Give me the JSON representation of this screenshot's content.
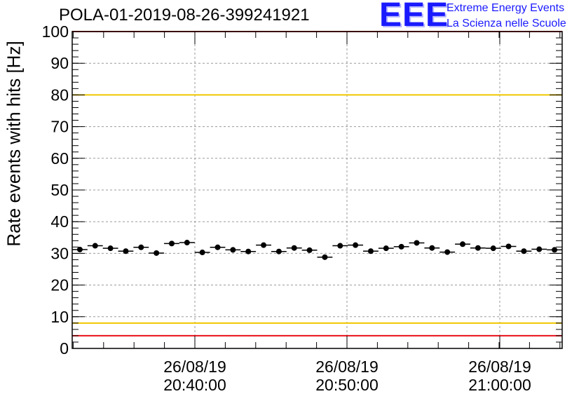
{
  "header": {
    "title": "POLA-01-2019-08-26-399241921",
    "logo_mark": "EEE",
    "logo_line1": "Extreme Energy Events",
    "logo_line2": "La Scienza nelle Scuole"
  },
  "chart_data": {
    "type": "scatter",
    "title": "POLA-01-2019-08-26-399241921",
    "xlabel": "",
    "ylabel": "Rate events with hits [Hz]",
    "ylim": [
      0,
      100
    ],
    "yticks": [
      "0",
      "10",
      "20",
      "30",
      "40",
      "50",
      "60",
      "70",
      "80",
      "90",
      "100"
    ],
    "grid": true,
    "xtick_labels": [
      {
        "date": "26/08/19",
        "time": "20:40:00"
      },
      {
        "date": "26/08/19",
        "time": "20:50:00"
      },
      {
        "date": "26/08/19",
        "time": "21:00:00"
      }
    ],
    "reference_lines": [
      {
        "value": 100,
        "color": "#e8101a"
      },
      {
        "value": 80,
        "color": "#f0c800"
      },
      {
        "value": 8,
        "color": "#f0c800"
      },
      {
        "value": 4,
        "color": "#e8101a"
      }
    ],
    "series": [
      {
        "name": "rate",
        "color": "#000000",
        "values": [
          31.2,
          32.4,
          31.6,
          30.7,
          31.9,
          30.1,
          33.1,
          33.4,
          30.3,
          31.9,
          31.1,
          30.6,
          32.6,
          30.6,
          31.7,
          31.0,
          28.8,
          32.4,
          32.6,
          30.7,
          31.6,
          32.1,
          33.3,
          31.7,
          30.4,
          32.9,
          31.7,
          31.6,
          32.2,
          30.7,
          31.3,
          31.1
        ]
      }
    ]
  }
}
